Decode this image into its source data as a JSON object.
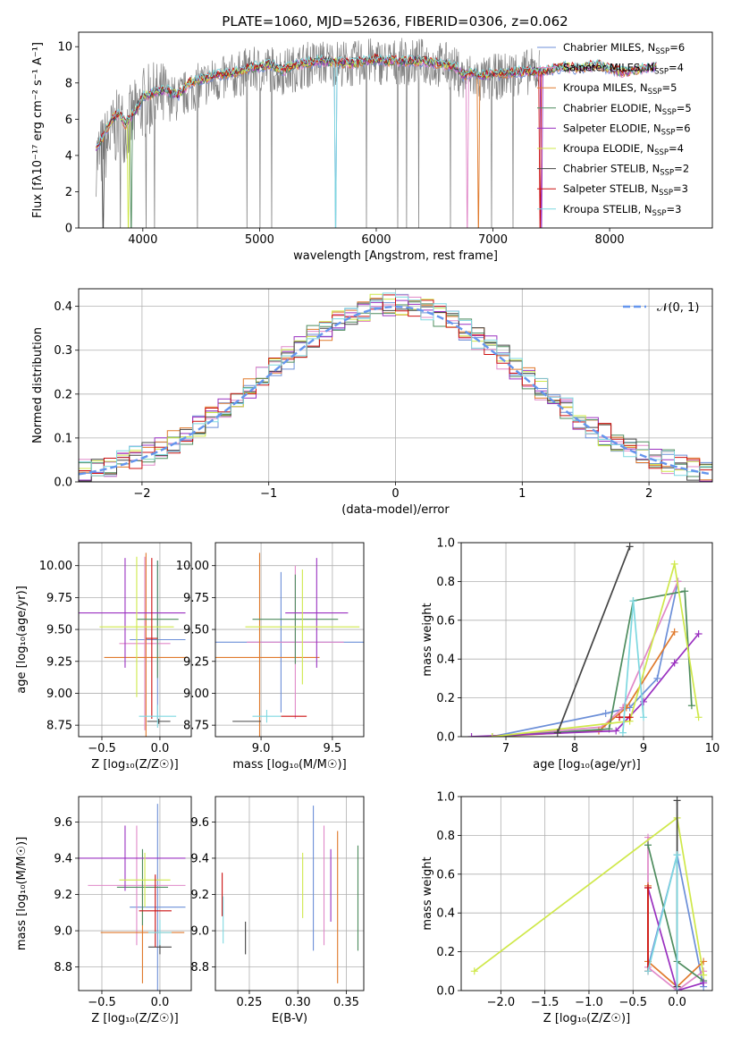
{
  "figure": {
    "title": "PLATE=1060, MJD=52636, FIBERID=0306, z=0.062"
  },
  "models": [
    {
      "name": "Chabrier MILES",
      "n_ssp": "6",
      "color": "#6c8fd8"
    },
    {
      "name": "Salpeter MILES",
      "n_ssp": "4",
      "color": "#e088c8"
    },
    {
      "name": "Kroupa MILES",
      "n_ssp": "5",
      "color": "#e07a2c"
    },
    {
      "name": "Chabrier ELODIE",
      "n_ssp": "5",
      "color": "#4e8c5e"
    },
    {
      "name": "Salpeter ELODIE",
      "n_ssp": "6",
      "color": "#9a30c0"
    },
    {
      "name": "Kroupa ELODIE",
      "n_ssp": "4",
      "color": "#cfe84a"
    },
    {
      "name": "Chabrier STELIB",
      "n_ssp": "2",
      "color": "#444444"
    },
    {
      "name": "Salpeter STELIB",
      "n_ssp": "3",
      "color": "#cc1111"
    },
    {
      "name": "Kroupa STELIB",
      "n_ssp": "3",
      "color": "#7ed8e0"
    }
  ],
  "chart_data": [
    {
      "id": "spectrum",
      "type": "line",
      "xlabel": "wavelength [Angstrom, rest frame]",
      "ylabel": "Flux [fλ10⁻¹⁷ erg cm⁻² s⁻¹ A⁻¹]",
      "xlim": [
        3450,
        8880
      ],
      "ylim": [
        0,
        10.8
      ],
      "xticks": [
        "4000",
        "5000",
        "6000",
        "7000",
        "8000"
      ],
      "yticks": [
        "0",
        "2",
        "4",
        "6",
        "8",
        "10"
      ],
      "grid": false,
      "legend": "right",
      "data_series": {
        "name": "",
        "color": "#808080",
        "x": [
          3600,
          3650,
          3700,
          3750,
          3800,
          3850,
          3900,
          3950,
          4000,
          4100,
          4200,
          4300,
          4400,
          4500,
          4600,
          4700,
          4800,
          4900,
          5000,
          5100,
          5200,
          5300,
          5400,
          5500,
          5600,
          5700,
          5800,
          5900,
          6000,
          6100,
          6200,
          6300,
          6400,
          6500,
          6600,
          6700,
          6750,
          6800,
          6900,
          7000,
          7100,
          7200,
          7300,
          7400
        ],
        "y": [
          3.8,
          4.2,
          4.8,
          5.3,
          5.8,
          5.6,
          5.9,
          6.3,
          6.9,
          7.1,
          7.2,
          7.1,
          7.6,
          7.9,
          8.1,
          8.2,
          8.4,
          8.7,
          8.7,
          8.8,
          8.6,
          8.8,
          9.0,
          9.1,
          9.1,
          9.1,
          9.0,
          9.2,
          9.2,
          9.1,
          9.2,
          9.1,
          9.2,
          9.0,
          9.0,
          8.6,
          8.2,
          8.4,
          8.1,
          8.3,
          8.4,
          8.6,
          8.6,
          8.7
        ]
      },
      "model_y": [
        4.4,
        4.9,
        5.6,
        6.1,
        6.3,
        5.7,
        6.2,
        6.6,
        7.2,
        7.5,
        7.6,
        7.3,
        8.0,
        8.2,
        8.4,
        8.5,
        8.6,
        8.8,
        8.9,
        9.0,
        8.7,
        9.0,
        9.1,
        9.2,
        9.2,
        9.1,
        9.1,
        9.2,
        9.3,
        9.2,
        9.2,
        9.2,
        9.2,
        9.1,
        9.0,
        8.8,
        8.4,
        8.6,
        8.4,
        8.5,
        8.5,
        8.6,
        8.6,
        8.6
      ],
      "model_x_ext": [
        7500,
        7600,
        7700,
        7800,
        7900,
        8000,
        8100,
        8200,
        8300,
        8400
      ],
      "model_y_ext": [
        8.7,
        8.9,
        8.8,
        8.9,
        9.0,
        8.8,
        8.6,
        8.7,
        8.8,
        8.9
      ]
    },
    {
      "id": "residuals",
      "type": "bar",
      "xlabel": "(data-model)/error",
      "ylabel": "Normed distribution",
      "xlim": [
        -2.5,
        2.5
      ],
      "ylim": [
        0,
        0.44
      ],
      "xticks": [
        "−2",
        "−1",
        "0",
        "1",
        "2"
      ],
      "yticks": [
        "0.0",
        "0.1",
        "0.2",
        "0.3",
        "0.4"
      ],
      "grid": true,
      "legend": "top-right",
      "reference": {
        "name": "𝒩(0, 1)",
        "color": "#6495ed",
        "mu": 0,
        "sigma": 1
      }
    },
    {
      "id": "age-vs-z",
      "type": "scatter",
      "xlabel": "Z [log₁₀(Z/Z☉)]",
      "ylabel": "age  [log₁₀(age/yr)]",
      "xlim": [
        -0.7,
        0.27
      ],
      "ylim": [
        8.66,
        10.18
      ],
      "xticks": [
        "−0.5",
        "0.0"
      ],
      "yticks": [
        "8.75",
        "9.00",
        "9.25",
        "9.50",
        "9.75",
        "10.00"
      ],
      "grid": true,
      "points": [
        {
          "model": 0,
          "x": -0.02,
          "y": 9.42,
          "xerr": 0.24,
          "yerr": 0.62
        },
        {
          "model": 1,
          "x": -0.13,
          "y": 9.39,
          "xerr": 0.22,
          "yerr": 0.68
        },
        {
          "model": 2,
          "x": -0.12,
          "y": 9.28,
          "xerr": 0.36,
          "yerr": 0.82
        },
        {
          "model": 3,
          "x": -0.02,
          "y": 9.58,
          "xerr": 0.18,
          "yerr": 0.46
        },
        {
          "model": 4,
          "x": -0.3,
          "y": 9.63,
          "xerr": 0.52,
          "yerr": 0.43
        },
        {
          "model": 5,
          "x": -0.2,
          "y": 9.52,
          "xerr": 0.32,
          "yerr": 0.55
        },
        {
          "model": 6,
          "x": -0.01,
          "y": 8.78,
          "xerr": 0.1,
          "yerr": 0.02
        },
        {
          "model": 7,
          "x": -0.07,
          "y": 9.43,
          "xerr": 0.05,
          "yerr": 0.63
        },
        {
          "model": 8,
          "x": -0.02,
          "y": 8.82,
          "xerr": 0.16,
          "yerr": 0.09
        }
      ]
    },
    {
      "id": "age-vs-mass",
      "type": "scatter",
      "xlabel": "mass [log₁₀(M/M☉)]",
      "ylabel": "",
      "xlim": [
        8.68,
        9.72
      ],
      "ylim": [
        8.66,
        10.18
      ],
      "xticks": [
        "9.0",
        "9.5"
      ],
      "yticks": [
        "8.75",
        "9.00",
        "9.25",
        "9.50",
        "9.75",
        "10.00"
      ],
      "grid": true,
      "points": [
        {
          "model": 0,
          "x": 9.14,
          "y": 9.4,
          "xerr": 0.58,
          "yerr": 0.55
        },
        {
          "model": 1,
          "x": 9.24,
          "y": 9.4,
          "xerr": 0.34,
          "yerr": 0.6
        },
        {
          "model": 2,
          "x": 8.99,
          "y": 9.28,
          "xerr": 0.42,
          "yerr": 0.82
        },
        {
          "model": 3,
          "x": 9.24,
          "y": 9.58,
          "xerr": 0.3,
          "yerr": 0.35
        },
        {
          "model": 4,
          "x": 9.39,
          "y": 9.63,
          "xerr": 0.22,
          "yerr": 0.43
        },
        {
          "model": 5,
          "x": 9.29,
          "y": 9.52,
          "xerr": 0.4,
          "yerr": 0.45
        },
        {
          "model": 6,
          "x": 8.9,
          "y": 8.78,
          "xerr": 0.1,
          "yerr": 0.0
        },
        {
          "model": 7,
          "x": 9.23,
          "y": 8.82,
          "xerr": 0.09,
          "yerr": 0.0
        },
        {
          "model": 8,
          "x": 9.04,
          "y": 8.82,
          "xerr": 0.1,
          "yerr": 0.05
        }
      ]
    },
    {
      "id": "mass-weight-vs-age",
      "type": "line",
      "xlabel": "age  [log₁₀(age/yr)]",
      "ylabel": "mass weight",
      "xlim": [
        6.35,
        10.0
      ],
      "ylim": [
        0,
        1.0
      ],
      "xticks": [
        "7",
        "8",
        "9",
        "10"
      ],
      "yticks": [
        "0.0",
        "0.2",
        "0.4",
        "0.6",
        "0.8",
        "1.0"
      ],
      "grid": true,
      "series": [
        {
          "model": 0,
          "x": [
            6.8,
            8.45,
            8.8,
            9.2,
            9.5
          ],
          "y": [
            0.0,
            0.12,
            0.15,
            0.3,
            0.8
          ]
        },
        {
          "model": 1,
          "x": [
            6.8,
            8.4,
            8.7,
            9.5
          ],
          "y": [
            0.0,
            0.05,
            0.15,
            0.8
          ]
        },
        {
          "model": 2,
          "x": [
            6.8,
            8.35,
            8.75,
            9.45
          ],
          "y": [
            0.0,
            0.03,
            0.15,
            0.54
          ]
        },
        {
          "model": 3,
          "x": [
            6.8,
            8.5,
            8.85,
            9.6,
            9.7
          ],
          "y": [
            0.0,
            0.04,
            0.7,
            0.75,
            0.16
          ]
        },
        {
          "model": 4,
          "x": [
            6.5,
            8.6,
            9.0,
            9.45,
            9.8
          ],
          "y": [
            0.0,
            0.03,
            0.18,
            0.38,
            0.53
          ]
        },
        {
          "model": 5,
          "x": [
            6.8,
            8.8,
            9.45,
            9.8
          ],
          "y": [
            0.0,
            0.08,
            0.89,
            0.1
          ]
        },
        {
          "model": 6,
          "x": [
            7.75,
            8.8
          ],
          "y": [
            0.02,
            0.98
          ]
        },
        {
          "model": 7,
          "x": [
            8.65,
            8.8
          ],
          "y": [
            0.1,
            0.1
          ]
        },
        {
          "model": 8,
          "x": [
            8.7,
            8.85,
            9.0
          ],
          "y": [
            0.02,
            0.7,
            0.1
          ]
        }
      ]
    },
    {
      "id": "mass-vs-z",
      "type": "scatter",
      "xlabel": "Z [log₁₀(Z/Z☉)]",
      "ylabel": "mass [log₁₀(M/M☉)]",
      "xlim": [
        -0.7,
        0.27
      ],
      "ylim": [
        8.67,
        9.74
      ],
      "xticks": [
        "−0.5",
        "0.0"
      ],
      "yticks": [
        "8.8",
        "9.0",
        "9.2",
        "9.4",
        "9.6"
      ],
      "grid": true,
      "points": [
        {
          "model": 0,
          "x": -0.02,
          "y": 9.13,
          "xerr": 0.24,
          "yerr": 0.57
        },
        {
          "model": 1,
          "x": -0.2,
          "y": 9.25,
          "xerr": 0.42,
          "yerr": 0.33
        },
        {
          "model": 2,
          "x": -0.15,
          "y": 8.99,
          "xerr": 0.36,
          "yerr": 0.28
        },
        {
          "model": 3,
          "x": -0.15,
          "y": 9.24,
          "xerr": 0.22,
          "yerr": 0.21
        },
        {
          "model": 4,
          "x": -0.3,
          "y": 9.4,
          "xerr": 0.52,
          "yerr": 0.18
        },
        {
          "model": 5,
          "x": -0.13,
          "y": 9.28,
          "xerr": 0.22,
          "yerr": 0.15
        },
        {
          "model": 6,
          "x": 0.0,
          "y": 8.91,
          "xerr": 0.1,
          "yerr": 0.04
        },
        {
          "model": 7,
          "x": -0.04,
          "y": 9.11,
          "xerr": 0.14,
          "yerr": 0.2
        },
        {
          "model": 8,
          "x": 0.0,
          "y": 8.99,
          "xerr": 0.1,
          "yerr": 0.07
        }
      ]
    },
    {
      "id": "mass-vs-ebv",
      "type": "scatter",
      "xlabel": "E(B-V)",
      "ylabel": "",
      "xlim": [
        0.215,
        0.368
      ],
      "ylim": [
        8.67,
        9.74
      ],
      "xticks": [
        "0.25",
        "0.30",
        "0.35"
      ],
      "yticks": [
        "8.8",
        "9.0",
        "9.2",
        "9.4",
        "9.6"
      ],
      "grid": true,
      "points": [
        {
          "model": 0,
          "x": 0.316,
          "y": 9.29,
          "xerr": 0,
          "yerr": 0.4
        },
        {
          "model": 1,
          "x": 0.327,
          "y": 9.25,
          "xerr": 0,
          "yerr": 0.33
        },
        {
          "model": 2,
          "x": 0.341,
          "y": 9.13,
          "xerr": 0,
          "yerr": 0.42
        },
        {
          "model": 3,
          "x": 0.362,
          "y": 9.18,
          "xerr": 0,
          "yerr": 0.29
        },
        {
          "model": 4,
          "x": 0.334,
          "y": 9.25,
          "xerr": 0,
          "yerr": 0.2
        },
        {
          "model": 5,
          "x": 0.305,
          "y": 9.25,
          "xerr": 0,
          "yerr": 0.18
        },
        {
          "model": 6,
          "x": 0.246,
          "y": 8.96,
          "xerr": 0,
          "yerr": 0.09
        },
        {
          "model": 7,
          "x": 0.222,
          "y": 9.2,
          "xerr": 0,
          "yerr": 0.12
        },
        {
          "model": 8,
          "x": 0.223,
          "y": 9.06,
          "xerr": 0,
          "yerr": 0.13
        }
      ]
    },
    {
      "id": "mass-weight-vs-z",
      "type": "line",
      "xlabel": "Z [log₁₀(Z/Z☉)]",
      "ylabel": "mass weight",
      "xlim": [
        -2.45,
        0.4
      ],
      "ylim": [
        0,
        1.0
      ],
      "xticks": [
        "−2.0",
        "−1.5",
        "−1.0",
        "−0.5",
        "0.0"
      ],
      "yticks": [
        "0.0",
        "0.2",
        "0.4",
        "0.6",
        "0.8",
        "1.0"
      ],
      "grid": true,
      "series": [
        {
          "model": 0,
          "x": [
            -0.33,
            0.0,
            0.3
          ],
          "y": [
            0.12,
            0.7,
            0.02
          ]
        },
        {
          "model": 1,
          "x": [
            -0.33,
            -0.33,
            0.0,
            0.3
          ],
          "y": [
            0.79,
            0.12,
            0.0,
            0.1
          ]
        },
        {
          "model": 2,
          "x": [
            -0.33,
            -0.33,
            0.0,
            0.3
          ],
          "y": [
            0.54,
            0.15,
            0.02,
            0.15
          ]
        },
        {
          "model": 3,
          "x": [
            -0.33,
            0.0,
            0.3
          ],
          "y": [
            0.75,
            0.15,
            0.05
          ]
        },
        {
          "model": 4,
          "x": [
            -0.33,
            0.0,
            0.3
          ],
          "y": [
            0.53,
            0.0,
            0.04
          ]
        },
        {
          "model": 5,
          "x": [
            -2.3,
            0.0,
            0.3
          ],
          "y": [
            0.1,
            0.89,
            0.08
          ]
        },
        {
          "model": 6,
          "x": [
            0.0,
            0.0
          ],
          "y": [
            0.02,
            0.98
          ]
        },
        {
          "model": 7,
          "x": [
            -0.33,
            -0.33
          ],
          "y": [
            0.1,
            0.53
          ]
        },
        {
          "model": 8,
          "x": [
            -0.33,
            0.0,
            0.0
          ],
          "y": [
            0.1,
            0.7,
            0.0
          ]
        }
      ]
    }
  ]
}
